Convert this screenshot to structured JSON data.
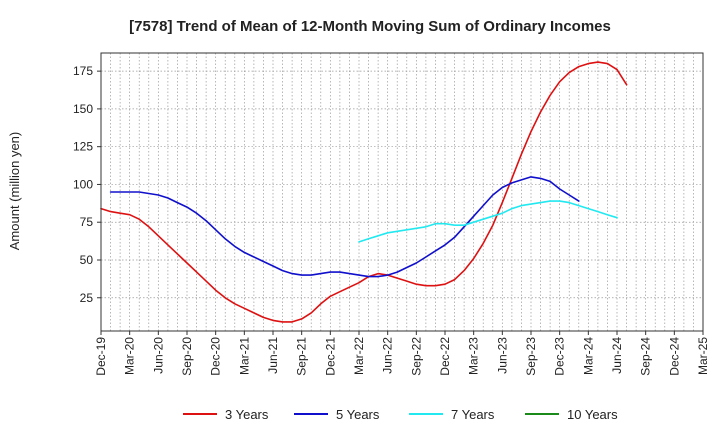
{
  "chart_data": {
    "type": "line",
    "title": "[7578]  Trend of Mean of 12-Month Moving Sum of Ordinary Incomes",
    "xlabel": "",
    "ylabel": "Amount (million yen)",
    "ylim": [
      3,
      187
    ],
    "yticks": [
      25,
      50,
      75,
      100,
      125,
      150,
      175
    ],
    "x_start": "Dec-19",
    "x_end": "Mar-25",
    "xtick_labels": [
      "Dec-19",
      "Mar-20",
      "Jun-20",
      "Sep-20",
      "Dec-20",
      "Mar-21",
      "Jun-21",
      "Sep-21",
      "Dec-21",
      "Mar-22",
      "Jun-22",
      "Sep-22",
      "Dec-22",
      "Mar-23",
      "Jun-23",
      "Sep-23",
      "Dec-23",
      "Mar-24",
      "Jun-24",
      "Sep-24",
      "Dec-24",
      "Mar-25"
    ],
    "grid": true,
    "legend_position": "bottom",
    "series": [
      {
        "name": "3 Years",
        "color": "#dd1111",
        "start_index": 0,
        "values": [
          84,
          82,
          81,
          80,
          77,
          72,
          66,
          60,
          54,
          48,
          42,
          36,
          30,
          25,
          21,
          18,
          15,
          12,
          10,
          9,
          9,
          11,
          15,
          21,
          26,
          29,
          32,
          35,
          39,
          41,
          40,
          38,
          36,
          34,
          33,
          33,
          34,
          37,
          43,
          51,
          61,
          73,
          88,
          104,
          120,
          135,
          148,
          159,
          168,
          174,
          178,
          180,
          181,
          180,
          176,
          166
        ]
      },
      {
        "name": "5 Years",
        "color": "#1010cc",
        "start_index": 1,
        "values": [
          95,
          95,
          95,
          95,
          94,
          93,
          91,
          88,
          85,
          81,
          76,
          70,
          64,
          59,
          55,
          52,
          49,
          46,
          43,
          41,
          40,
          40,
          41,
          42,
          42,
          41,
          40,
          39,
          39,
          40,
          42,
          45,
          48,
          52,
          56,
          60,
          65,
          72,
          79,
          86,
          93,
          98,
          101,
          103,
          105,
          104,
          102,
          97,
          93,
          89
        ]
      },
      {
        "name": "7 Years",
        "color": "#22e8f0",
        "start_index": 27,
        "values": [
          62,
          64,
          66,
          68,
          69,
          70,
          71,
          72,
          74,
          74,
          73,
          73,
          75,
          77,
          79,
          81,
          84,
          86,
          87,
          88,
          89,
          89,
          88,
          86,
          84,
          82,
          80,
          78
        ]
      },
      {
        "name": "10 Years",
        "color": "#1a8a1a",
        "start_index": 0,
        "values": []
      }
    ]
  }
}
